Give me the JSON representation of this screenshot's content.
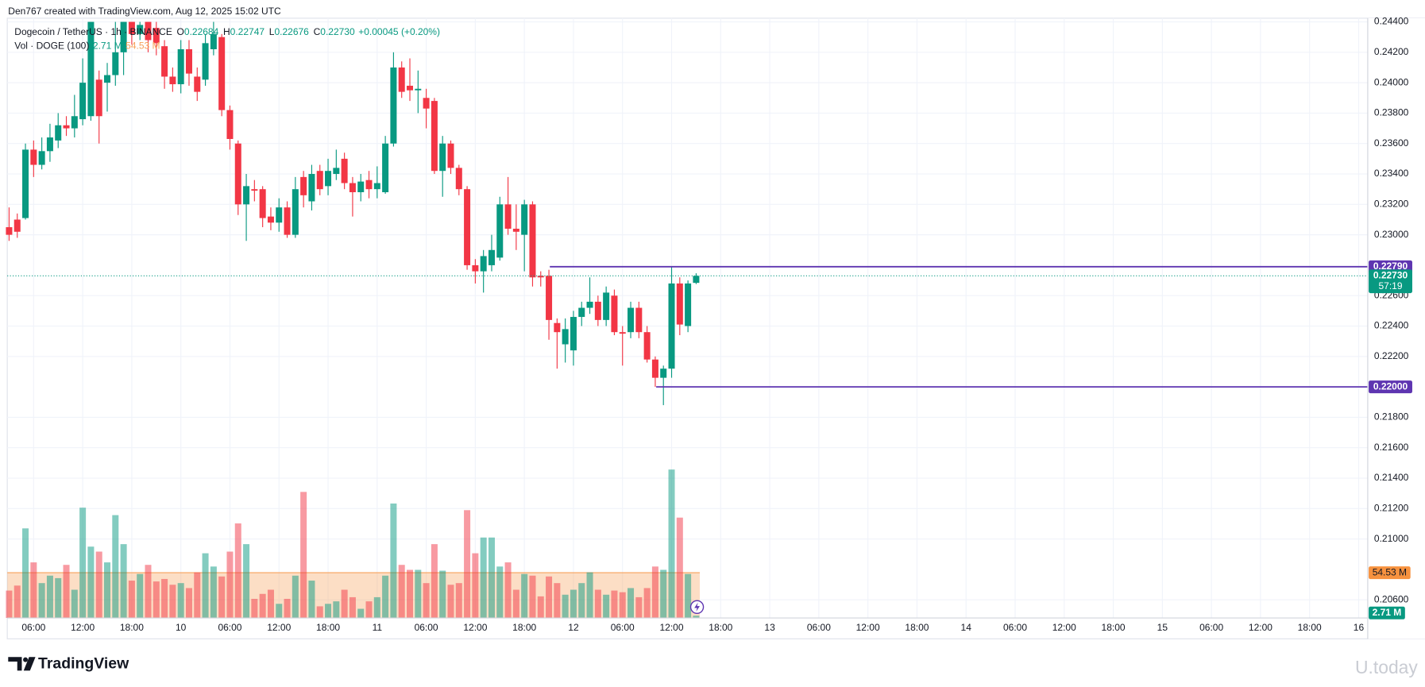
{
  "chart_data": {
    "type": "candlestick",
    "header": "Den767 created with TradingView.com, Aug 12, 2025 15:02 UTC",
    "symbol": "Dogecoin / TetherUS · 1h · BINANCE",
    "ohlc_legend": [
      {
        "key": "O",
        "value": 0.22684,
        "label": "0.22684"
      },
      {
        "key": "H",
        "value": 0.22747,
        "label": "0.22747"
      },
      {
        "key": "L",
        "value": 0.22676,
        "label": "0.22676"
      },
      {
        "key": "C",
        "value": 0.2273,
        "label": "0.22730"
      }
    ],
    "change": "+0.00045 (+0.20%)",
    "volume_title": "Vol · DOGE (100)",
    "volume_last": {
      "value": 2.71,
      "label": "2.71 M"
    },
    "volume_ma": {
      "value": 54.53,
      "label": "54.53 M"
    },
    "colors": {
      "up": "#089981",
      "down": "#f23645",
      "level": "#5e35b1",
      "ma": "#f7a15a"
    },
    "grid": true,
    "categories": [
      null,
      null,
      null,
      "06:00",
      null,
      null,
      null,
      null,
      null,
      "12:00",
      null,
      null,
      null,
      null,
      null,
      "18:00",
      null,
      null,
      null,
      null,
      null,
      "10",
      null,
      null,
      null,
      null,
      null,
      "06:00",
      null,
      null,
      null,
      null,
      null,
      "12:00",
      null,
      null,
      null,
      null,
      null,
      "18:00",
      null,
      null,
      null,
      null,
      null,
      "11",
      null,
      null,
      null,
      null,
      null,
      "06:00",
      null,
      null,
      null,
      null,
      null,
      "12:00",
      null,
      null,
      null,
      null,
      null,
      "18:00",
      null,
      null,
      null,
      null,
      null,
      "12",
      null,
      null,
      null,
      null,
      null,
      "06:00",
      null,
      null,
      null,
      null,
      null,
      "12:00",
      null,
      null,
      null,
      null,
      null,
      "18:00",
      null,
      null,
      null,
      null,
      null,
      "13",
      null,
      null,
      null,
      null,
      null,
      "06:00",
      null,
      null,
      null,
      null,
      null,
      "12:00",
      null,
      null,
      null,
      null,
      null,
      "18:00",
      null,
      null,
      null,
      null,
      null,
      "14",
      null,
      null,
      null,
      null,
      null,
      "06:00",
      null,
      null,
      null,
      null,
      null,
      "12:00",
      null,
      null,
      null,
      null,
      null,
      "18:00",
      null,
      null,
      null,
      null,
      null,
      "15",
      null,
      null,
      null,
      null,
      null,
      "06:00",
      null,
      null,
      null,
      null,
      null,
      "12:00",
      null,
      null,
      null,
      null,
      null,
      "18:00",
      null,
      null,
      null,
      null,
      null,
      "16",
      null
    ],
    "open": [
      0.2305,
      0.231,
      0.2311,
      0.2356,
      0.2346,
      0.2355,
      0.2362,
      0.2372,
      0.237,
      0.2376,
      0.2378,
      0.2402,
      0.24,
      0.2405,
      0.242,
      0.244,
      0.2432,
      0.244,
      0.2436,
      0.2424,
      0.2404,
      0.2399,
      0.2422,
      0.2404,
      0.2402,
      0.2422,
      0.243,
      0.2382,
      0.236,
      0.232,
      0.233,
      0.233,
      0.2312,
      0.2308,
      0.2318,
      0.23,
      0.2338,
      0.2322,
      0.2342,
      0.2332,
      0.234,
      0.235,
      0.2334,
      0.2328,
      0.2336,
      0.233,
      0.2328,
      0.236,
      0.241,
      0.2398,
      0.2395,
      0.239,
      0.2388,
      0.2342,
      0.236,
      0.2344,
      0.233,
      0.228,
      0.2276,
      0.228,
      0.2285,
      0.232,
      0.2304,
      0.23,
      0.232,
      0.2273,
      0.2273,
      0.2242,
      0.2228,
      0.2224,
      0.2246,
      0.2252,
      0.2256,
      0.2244,
      0.226,
      0.2236,
      0.2236,
      0.2252,
      0.2236,
      0.2218,
      0.2206,
      0.2212,
      0.2268,
      0.224,
      0.22684,
      null,
      null,
      null,
      null,
      null,
      null,
      null,
      null,
      null,
      null,
      null,
      null,
      null,
      null,
      null,
      null,
      null,
      null,
      null,
      null,
      null,
      null,
      null,
      null,
      null,
      null,
      null,
      null,
      null,
      null,
      null,
      null,
      null,
      null,
      null,
      null,
      null,
      null,
      null,
      null,
      null,
      null,
      null,
      null,
      null,
      null,
      null,
      null,
      null,
      null,
      null,
      null,
      null,
      null,
      null,
      null,
      null,
      null,
      null,
      null,
      null,
      null,
      null,
      null,
      null,
      null,
      null,
      null,
      null,
      null,
      null,
      null,
      null,
      null,
      null,
      null,
      null,
      null,
      null,
      null,
      null,
      null
    ],
    "high": [
      0.2318,
      0.2314,
      0.236,
      0.2362,
      0.2364,
      0.2373,
      0.238,
      0.2378,
      0.2392,
      0.2416,
      0.244,
      0.2408,
      0.2413,
      0.244,
      0.244,
      0.244,
      0.244,
      0.244,
      0.244,
      0.2428,
      0.241,
      0.2428,
      0.2428,
      0.241,
      0.2432,
      0.244,
      0.2432,
      0.2385,
      0.2362,
      0.234,
      0.2336,
      0.2332,
      0.2318,
      0.2324,
      0.2322,
      0.2338,
      0.2342,
      0.2346,
      0.2346,
      0.235,
      0.2356,
      0.2354,
      0.2338,
      0.234,
      0.2342,
      0.2345,
      0.2365,
      0.242,
      0.2414,
      0.2416,
      0.2408,
      0.2396,
      0.239,
      0.2365,
      0.2362,
      0.2346,
      0.2332,
      0.2284,
      0.229,
      0.23,
      0.2325,
      0.2338,
      0.232,
      0.2323,
      0.2322,
      0.2276,
      0.2277,
      0.2245,
      0.2245,
      0.225,
      0.2256,
      0.2272,
      0.226,
      0.2266,
      0.2264,
      0.224,
      0.2256,
      0.2256,
      0.224,
      0.222,
      0.2214,
      0.2279,
      0.2272,
      0.227,
      0.22747,
      null,
      null,
      null,
      null,
      null,
      null,
      null,
      null,
      null,
      null,
      null,
      null,
      null,
      null,
      null,
      null,
      null,
      null,
      null,
      null,
      null,
      null,
      null,
      null,
      null,
      null,
      null,
      null,
      null,
      null,
      null,
      null,
      null,
      null,
      null,
      null,
      null,
      null,
      null,
      null,
      null,
      null,
      null,
      null,
      null,
      null,
      null,
      null,
      null,
      null,
      null,
      null,
      null,
      null,
      null,
      null,
      null,
      null,
      null,
      null,
      null,
      null,
      null,
      null,
      null,
      null,
      null,
      null,
      null,
      null,
      null,
      null,
      null,
      null,
      null,
      null,
      null,
      null,
      null,
      null,
      null,
      null
    ],
    "low": [
      0.2296,
      0.2298,
      0.231,
      0.2338,
      0.2343,
      0.2348,
      0.2357,
      0.2365,
      0.2364,
      0.2372,
      0.2375,
      0.236,
      0.2381,
      0.2398,
      0.2405,
      0.2425,
      0.2428,
      0.242,
      0.2418,
      0.2396,
      0.2394,
      0.2393,
      0.2398,
      0.2388,
      0.2398,
      0.2418,
      0.2378,
      0.2356,
      0.2313,
      0.2296,
      0.2322,
      0.2305,
      0.2303,
      0.2302,
      0.2298,
      0.2298,
      0.2318,
      0.2316,
      0.2326,
      0.2326,
      0.2336,
      0.233,
      0.2312,
      0.2322,
      0.2324,
      0.2324,
      0.2327,
      0.2358,
      0.239,
      0.2388,
      0.238,
      0.237,
      0.234,
      0.2325,
      0.234,
      0.2326,
      0.2277,
      0.2268,
      0.2262,
      0.2276,
      0.2283,
      0.23,
      0.229,
      0.2276,
      0.2266,
      0.2266,
      0.2231,
      0.2212,
      0.2216,
      0.2214,
      0.224,
      0.2248,
      0.224,
      0.224,
      0.2234,
      0.2214,
      0.2232,
      0.2232,
      0.2216,
      0.22,
      0.2188,
      0.2206,
      0.2234,
      0.2236,
      0.22676,
      null,
      null,
      null,
      null,
      null,
      null,
      null,
      null,
      null,
      null,
      null,
      null,
      null,
      null,
      null,
      null,
      null,
      null,
      null,
      null,
      null,
      null,
      null,
      null,
      null,
      null,
      null,
      null,
      null,
      null,
      null,
      null,
      null,
      null,
      null,
      null,
      null,
      null,
      null,
      null,
      null,
      null,
      null,
      null,
      null,
      null,
      null,
      null,
      null,
      null,
      null,
      null,
      null,
      null,
      null,
      null,
      null,
      null,
      null,
      null,
      null,
      null,
      null,
      null,
      null,
      null,
      null,
      null,
      null,
      null,
      null,
      null,
      null,
      null,
      null,
      null,
      null,
      null,
      null,
      null,
      null,
      null
    ],
    "close": [
      0.23,
      0.2302,
      0.2356,
      0.2346,
      0.2355,
      0.2364,
      0.2372,
      0.237,
      0.2378,
      0.24,
      0.244,
      0.2378,
      0.2405,
      0.242,
      0.244,
      0.2432,
      0.2438,
      0.2428,
      0.2426,
      0.2404,
      0.2399,
      0.2422,
      0.2406,
      0.2394,
      0.2426,
      0.2432,
      0.2382,
      0.2363,
      0.232,
      0.2332,
      0.2329,
      0.2311,
      0.2308,
      0.2318,
      0.23,
      0.233,
      0.2326,
      0.234,
      0.233,
      0.2342,
      0.2344,
      0.2334,
      0.2328,
      0.2335,
      0.233,
      0.2334,
      0.236,
      0.241,
      0.2394,
      0.2395,
      0.2396,
      0.2383,
      0.2342,
      0.236,
      0.2344,
      0.233,
      0.228,
      0.2276,
      0.2286,
      0.229,
      0.232,
      0.2304,
      0.2302,
      0.232,
      0.2272,
      0.2272,
      0.2244,
      0.2236,
      0.2238,
      0.2246,
      0.2252,
      0.2256,
      0.2244,
      0.2262,
      0.2236,
      0.2235,
      0.2252,
      0.2236,
      0.2218,
      0.2206,
      0.2212,
      0.2268,
      0.2241,
      0.2268,
      0.2273,
      null,
      null,
      null,
      null,
      null,
      null,
      null,
      null,
      null,
      null,
      null,
      null,
      null,
      null,
      null,
      null,
      null,
      null,
      null,
      null,
      null,
      null,
      null,
      null,
      null,
      null,
      null,
      null,
      null,
      null,
      null,
      null,
      null,
      null,
      null,
      null,
      null,
      null,
      null,
      null,
      null,
      null,
      null,
      null,
      null,
      null,
      null,
      null,
      null,
      null,
      null,
      null,
      null,
      null,
      null,
      null,
      null,
      null,
      null,
      null,
      null,
      null,
      null,
      null,
      null,
      null,
      null,
      null,
      null,
      null,
      null,
      null,
      null,
      null,
      null,
      null,
      null,
      null,
      null,
      null,
      null,
      null
    ],
    "volume": [
      33,
      39,
      108,
      67,
      42,
      51,
      48,
      64,
      34,
      133,
      86,
      80,
      67,
      124,
      89,
      45,
      53,
      64,
      44,
      47,
      40,
      42,
      36,
      55,
      78,
      62,
      50,
      80,
      114,
      89,
      23,
      29,
      34,
      17,
      23,
      51,
      152,
      45,
      14,
      17,
      20,
      34,
      25,
      11,
      20,
      25,
      51,
      138,
      64,
      58,
      58,
      42,
      89,
      57,
      40,
      42,
      130,
      78,
      97,
      97,
      62,
      67,
      34,
      53,
      51,
      26,
      50,
      42,
      28,
      34,
      42,
      55,
      34,
      28,
      33,
      31,
      36,
      25,
      36,
      62,
      58,
      179,
      121,
      53,
      2.71,
      null,
      null,
      null,
      null,
      null,
      null,
      null,
      null,
      null,
      null,
      null,
      null,
      null,
      null,
      null,
      null,
      null,
      null,
      null,
      null,
      null,
      null,
      null,
      null,
      null,
      null,
      null,
      null,
      null,
      null,
      null,
      null,
      null,
      null,
      null,
      null,
      null,
      null,
      null,
      null,
      null,
      null,
      null,
      null,
      null,
      null,
      null,
      null,
      null,
      null,
      null,
      null,
      null,
      null,
      null,
      null,
      null,
      null,
      null,
      null,
      null,
      null,
      null,
      null,
      null,
      null,
      null,
      null,
      null,
      null,
      null,
      null,
      null,
      null,
      null,
      null,
      null,
      null,
      null,
      null,
      null,
      null
    ],
    "ylim": [
      0.20481,
      0.2446
    ],
    "yticks": [
      {
        "value": 0.244,
        "label": "0.24400"
      },
      {
        "value": 0.242,
        "label": "0.24200"
      },
      {
        "value": 0.24,
        "label": "0.24000"
      },
      {
        "value": 0.238,
        "label": "0.23800"
      },
      {
        "value": 0.236,
        "label": "0.23600"
      },
      {
        "value": 0.234,
        "label": "0.23400"
      },
      {
        "value": 0.232,
        "label": "0.23200"
      },
      {
        "value": 0.23,
        "label": "0.23000"
      },
      {
        "value": 0.226,
        "label": "0.22600"
      },
      {
        "value": 0.224,
        "label": "0.22400"
      },
      {
        "value": 0.222,
        "label": "0.22200"
      },
      {
        "value": 0.218,
        "label": "0.21800"
      },
      {
        "value": 0.216,
        "label": "0.21600"
      },
      {
        "value": 0.214,
        "label": "0.21400"
      },
      {
        "value": 0.212,
        "label": "0.21200"
      },
      {
        "value": 0.21,
        "label": "0.21000"
      },
      {
        "value": 0.206,
        "label": "0.20600"
      }
    ],
    "y2lim": [
      0,
      730
    ],
    "levels": [
      {
        "value": 0.2279,
        "label": "0.22790"
      },
      {
        "value": 0.22,
        "label": "0.22000"
      }
    ],
    "last_price": {
      "value": 0.2273,
      "label": "0.22730"
    },
    "countdown": "57:19",
    "footer": {
      "brand": "TradingView",
      "watermark": "U.today"
    }
  }
}
